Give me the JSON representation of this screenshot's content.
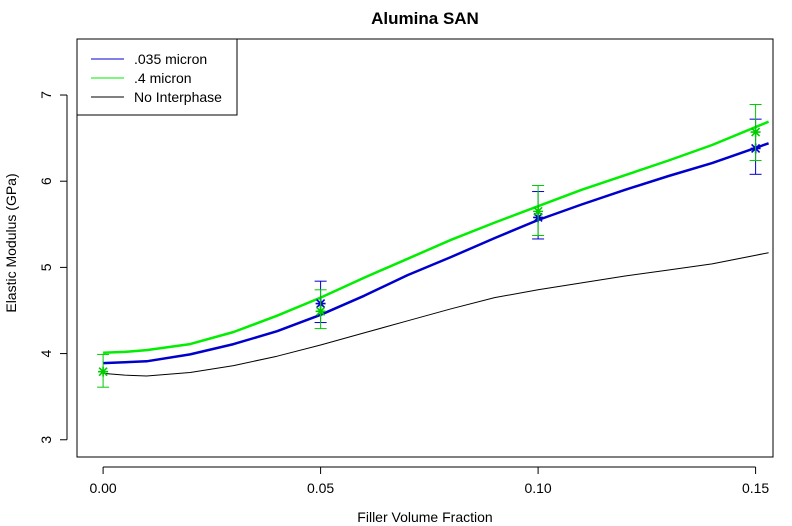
{
  "chart_data": {
    "type": "line",
    "title": "Alumina SAN",
    "xlabel": "Filler Volume Fraction",
    "ylabel": "Elastic Modulus (GPa)",
    "xlim": [
      -0.006,
      0.154
    ],
    "ylim": [
      2.8,
      7.65
    ],
    "xticks": [
      0.0,
      0.05,
      0.1,
      0.15
    ],
    "xtick_labels": [
      "0.00",
      "0.05",
      "0.10",
      "0.15"
    ],
    "yticks": [
      3,
      4,
      5,
      6,
      7
    ],
    "ytick_labels": [
      "3",
      "4",
      "5",
      "6",
      "7"
    ],
    "grid": false,
    "legend_position": "top-left",
    "series": [
      {
        "name": ".035 micron",
        "color": "#0000cc",
        "x": [
          0.0,
          0.005,
          0.01,
          0.02,
          0.03,
          0.04,
          0.05,
          0.06,
          0.07,
          0.08,
          0.09,
          0.1,
          0.11,
          0.12,
          0.13,
          0.14,
          0.153
        ],
        "y": [
          3.89,
          3.9,
          3.91,
          3.99,
          4.11,
          4.26,
          4.45,
          4.67,
          4.91,
          5.12,
          5.34,
          5.55,
          5.73,
          5.9,
          6.06,
          6.21,
          6.44
        ]
      },
      {
        "name": ".4 micron",
        "color": "#00ee00",
        "x": [
          0.0,
          0.005,
          0.01,
          0.02,
          0.03,
          0.04,
          0.05,
          0.06,
          0.07,
          0.08,
          0.09,
          0.1,
          0.11,
          0.12,
          0.13,
          0.14,
          0.153
        ],
        "y": [
          4.01,
          4.02,
          4.04,
          4.11,
          4.25,
          4.44,
          4.65,
          4.88,
          5.1,
          5.32,
          5.52,
          5.71,
          5.9,
          6.07,
          6.24,
          6.42,
          6.69
        ]
      },
      {
        "name": "No Interphase",
        "color": "#000000",
        "x": [
          0.0,
          0.005,
          0.01,
          0.02,
          0.03,
          0.04,
          0.05,
          0.06,
          0.07,
          0.08,
          0.09,
          0.1,
          0.11,
          0.12,
          0.13,
          0.14,
          0.153
        ],
        "y": [
          3.77,
          3.75,
          3.74,
          3.78,
          3.86,
          3.97,
          4.1,
          4.24,
          4.38,
          4.52,
          4.65,
          4.74,
          4.82,
          4.9,
          4.97,
          5.04,
          5.17
        ]
      }
    ],
    "points": [
      {
        "x": 0.0,
        "y": 3.79,
        "ylow": 3.61,
        "yhigh": 3.99,
        "color": "#00cc00"
      },
      {
        "x": 0.05,
        "y": 4.58,
        "ylow": 4.36,
        "yhigh": 4.84,
        "color": "#0000cc"
      },
      {
        "x": 0.05,
        "y": 4.49,
        "ylow": 4.29,
        "yhigh": 4.74,
        "color": "#00cc00"
      },
      {
        "x": 0.1,
        "y": 5.58,
        "ylow": 5.33,
        "yhigh": 5.88,
        "color": "#0000cc"
      },
      {
        "x": 0.1,
        "y": 5.65,
        "ylow": 5.37,
        "yhigh": 5.95,
        "color": "#00cc00"
      },
      {
        "x": 0.15,
        "y": 6.38,
        "ylow": 6.08,
        "yhigh": 6.72,
        "color": "#0000cc"
      },
      {
        "x": 0.15,
        "y": 6.57,
        "ylow": 6.24,
        "yhigh": 6.89,
        "color": "#00cc00"
      }
    ]
  }
}
